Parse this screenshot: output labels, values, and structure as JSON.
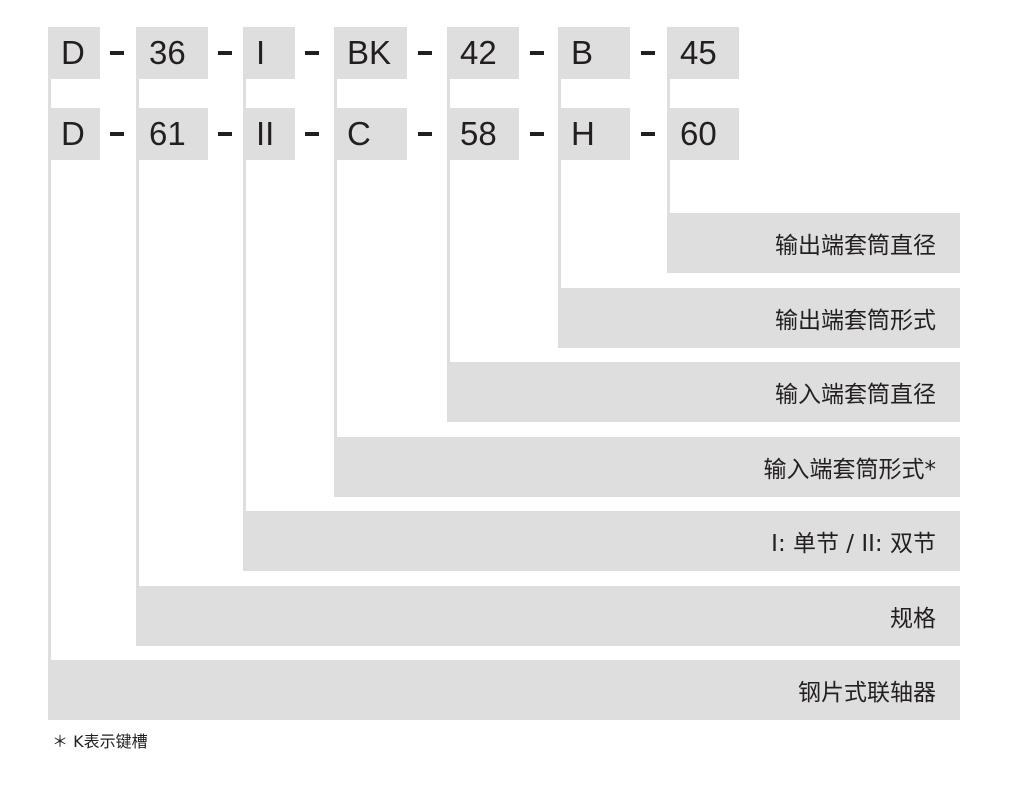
{
  "codes": [
    [
      "D",
      "36",
      "I",
      "BK",
      "42",
      "B",
      "45"
    ],
    [
      "D",
      "61",
      "II",
      "C",
      "58",
      "H",
      "60"
    ]
  ],
  "descriptions": [
    "输出端套筒直径",
    "输出端套筒形式",
    "输入端套筒直径",
    "输入端套筒形式*",
    "I: 单节 / II: 双节",
    "规格",
    "钢片式联轴器"
  ],
  "note": "＊ K表示键槽",
  "colors": {
    "box": "#dedede",
    "text": "#231f20"
  }
}
